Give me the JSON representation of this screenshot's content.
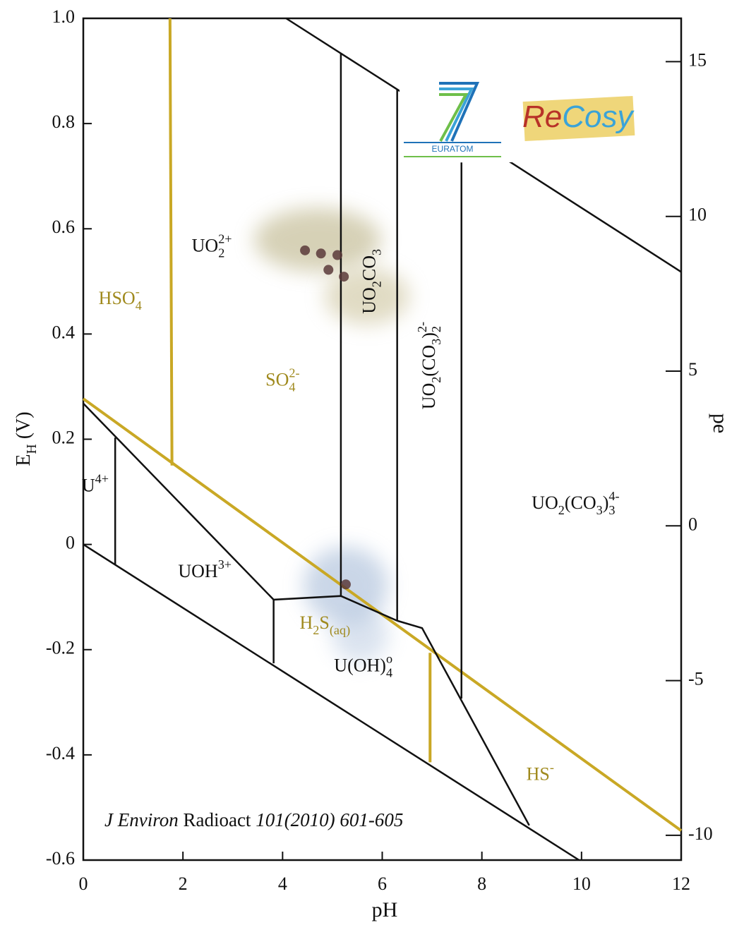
{
  "chart_data": {
    "type": "pourbaix",
    "xlabel": "pH",
    "ylabel": [
      {
        "text": "E",
        "style": "n"
      },
      {
        "text": "H",
        "style": "sub"
      },
      {
        "text": " (V)",
        "style": "n"
      }
    ],
    "y2label": "pe",
    "xlim": [
      0,
      12
    ],
    "xticks": [
      0,
      2,
      4,
      6,
      8,
      10,
      12
    ],
    "ylim": [
      -0.6,
      1.0
    ],
    "yticks": [
      -0.6,
      -0.4,
      -0.2,
      0,
      0.2,
      0.4,
      0.6,
      0.8,
      {
        "value": 1.0,
        "label": "1.0"
      }
    ],
    "y2lim": [
      -10.8,
      16.4
    ],
    "y2ticks": [
      -10,
      -5,
      0,
      5,
      10,
      15
    ],
    "boundaries": [
      {
        "color": "#c9a825",
        "x": [
          1.74,
          1.78
        ],
        "y": [
          1.0,
          0.15
        ]
      },
      {
        "color": "#c9a825",
        "x": [
          0,
          12
        ],
        "y": [
          0.277,
          -0.544
        ]
      },
      {
        "color": "#c9a825",
        "x": [
          6.96,
          6.96
        ],
        "y": [
          -0.206,
          -0.414
        ]
      },
      {
        "color": "#111111",
        "x": [
          4.07,
          6.3,
          12
        ],
        "y": [
          1.0,
          0.865,
          0.518
        ]
      },
      {
        "color": "#111111",
        "x": [
          0,
          9.95
        ],
        "y": [
          0.0,
          -0.6
        ]
      },
      {
        "color": "#111111",
        "x": [
          5.17,
          5.17
        ],
        "y": [
          0.934,
          -0.098
        ]
      },
      {
        "color": "#111111",
        "x": [
          6.3,
          6.3
        ],
        "y": [
          0.865,
          -0.145
        ]
      },
      {
        "color": "#111111",
        "x": [
          7.59,
          7.59
        ],
        "y": [
          0.726,
          -0.293
        ]
      },
      {
        "color": "#111111",
        "x": [
          0.64,
          0.64
        ],
        "y": [
          0.203,
          -0.038
        ]
      },
      {
        "color": "#111111",
        "x": [
          0,
          3.82,
          5.17,
          6.3
        ],
        "y": [
          0.268,
          -0.105,
          -0.098,
          -0.145
        ]
      },
      {
        "color": "#111111",
        "x": [
          3.82,
          3.82
        ],
        "y": [
          -0.105,
          -0.226
        ]
      },
      {
        "color": "#111111",
        "x": [
          6.3,
          6.8,
          8.95
        ],
        "y": [
          -0.145,
          -0.159,
          -0.534
        ]
      }
    ],
    "points": {
      "color": "#5a3a3a",
      "x": [
        4.45,
        4.77,
        5.1,
        4.92,
        5.23,
        5.27
      ],
      "y": [
        0.559,
        0.553,
        0.55,
        0.522,
        0.509,
        -0.076
      ]
    },
    "region_labels": [
      {
        "x": 2.58,
        "y": 0.565,
        "color": "#111111",
        "parts": [
          {
            "text": "UO",
            "style": "n"
          },
          {
            "text": "2",
            "style": "sub"
          },
          {
            "text": "2+",
            "style": "sup"
          }
        ]
      },
      {
        "x": 0.74,
        "y": 0.465,
        "color": "#a08a1e",
        "parts": [
          {
            "text": "HSO",
            "style": "n"
          },
          {
            "text": "4",
            "style": "sub"
          },
          {
            "text": "-",
            "style": "sup"
          }
        ]
      },
      {
        "x": 4.0,
        "y": 0.31,
        "color": "#a08a1e",
        "parts": [
          {
            "text": "SO",
            "style": "n"
          },
          {
            "text": "4",
            "style": "sub"
          },
          {
            "text": "2-",
            "style": "sup"
          }
        ]
      },
      {
        "x": 5.77,
        "y": 0.5,
        "color": "#111111",
        "vertical": true,
        "parts": [
          {
            "text": "UO",
            "style": "n"
          },
          {
            "text": "2",
            "style": "sub"
          },
          {
            "text": "CO",
            "style": "n"
          },
          {
            "text": "3",
            "style": "sub"
          }
        ]
      },
      {
        "x": 6.97,
        "y": 0.34,
        "color": "#111111",
        "vertical": true,
        "parts": [
          {
            "text": "UO",
            "style": "n"
          },
          {
            "text": "2",
            "style": "sub"
          },
          {
            "text": "(CO",
            "style": "n"
          },
          {
            "text": "3",
            "style": "sub"
          },
          {
            "text": ")",
            "style": "n"
          },
          {
            "text": "2",
            "style": "sub"
          },
          {
            "text": "2-",
            "style": "sup"
          }
        ]
      },
      {
        "x": 9.88,
        "y": 0.076,
        "color": "#111111",
        "parts": [
          {
            "text": "UO",
            "style": "n"
          },
          {
            "text": "2",
            "style": "sub"
          },
          {
            "text": "(CO",
            "style": "n"
          },
          {
            "text": "3",
            "style": "sub"
          },
          {
            "text": ")",
            "style": "n"
          },
          {
            "text": "3",
            "style": "sub"
          },
          {
            "text": "4-",
            "style": "sup"
          }
        ]
      },
      {
        "x": 0.24,
        "y": 0.109,
        "color": "#111111",
        "parts": [
          {
            "text": "U",
            "style": "n"
          },
          {
            "text": "4+",
            "style": "sup"
          }
        ]
      },
      {
        "x": 2.44,
        "y": -0.054,
        "color": "#111111",
        "parts": [
          {
            "text": "UOH",
            "style": "n"
          },
          {
            "text": "3+",
            "style": "sup"
          }
        ]
      },
      {
        "x": 4.85,
        "y": -0.152,
        "color": "#a08a1e",
        "parts": [
          {
            "text": "H",
            "style": "n"
          },
          {
            "text": "2",
            "style": "sub"
          },
          {
            "text": "S",
            "style": "n"
          },
          {
            "text": "(aq)",
            "style": "sub"
          }
        ]
      },
      {
        "x": 5.62,
        "y": -0.233,
        "color": "#111111",
        "parts": [
          {
            "text": "U(OH)",
            "style": "n"
          },
          {
            "text": "4",
            "style": "sub"
          },
          {
            "text": "o",
            "style": "sup"
          }
        ]
      },
      {
        "x": 9.17,
        "y": -0.44,
        "color": "#a08a1e",
        "parts": [
          {
            "text": "HS",
            "style": "n"
          },
          {
            "text": "-",
            "style": "sup"
          }
        ]
      }
    ],
    "citation": [
      {
        "text": "J Environ",
        "style": "i"
      },
      {
        "text": " Radioact ",
        "style": "n"
      },
      {
        "text": "101(2010) 601-605",
        "style": "i"
      }
    ],
    "logos": {
      "euratom": "EURATOM",
      "recosy": [
        {
          "text": "Re",
          "color": "#b83228"
        },
        {
          "text": "Cosy",
          "color": "#3aa3d8"
        }
      ]
    }
  }
}
